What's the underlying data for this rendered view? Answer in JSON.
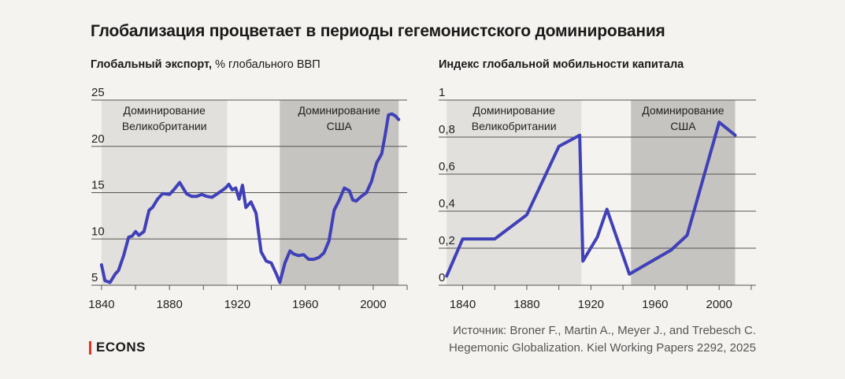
{
  "header": {
    "title": "Глобализация процветает в периоды гегемонистского доминирования"
  },
  "left_chart_header": {
    "bold": "Глобальный экспорт,",
    "normal": " % глобального ВВП"
  },
  "right_chart_header": {
    "text": "Индекс глобальной мобильности капитала"
  },
  "source": {
    "line1": "Источник: Broner F., Martin A., Meyer J., and Trebesch C.",
    "line2": "Hegemonic Globalization. Kiel Working Papers 2292, 2025"
  },
  "logo": {
    "text": "ECONS",
    "accent": "#e0342b"
  },
  "colors": {
    "line": "#4040b8",
    "period_uk": "#e2e0dc",
    "period_us": "#c6c4c0",
    "grid": "#555555"
  },
  "chart_data": [
    {
      "type": "line",
      "title": "Глобальный экспорт, % глобального ВВП",
      "xlim": [
        1834,
        2020
      ],
      "ylim": [
        5,
        25
      ],
      "xticks": [
        1840,
        1880,
        1920,
        1960,
        2000
      ],
      "yticks": [
        5,
        10,
        15,
        20,
        25
      ],
      "ytick_labels": [
        "5",
        "10",
        "15",
        "20",
        "25"
      ],
      "periods": [
        {
          "name": "Доминирование\nВеликобритании",
          "start": 1840,
          "end": 1914,
          "shade": "light"
        },
        {
          "name": "Доминирование\nСША",
          "start": 1945,
          "end": 2015,
          "shade": "dark"
        }
      ],
      "series": [
        {
          "x": [
            1840,
            1842,
            1845,
            1848,
            1850,
            1853,
            1856,
            1858,
            1860,
            1862,
            1865,
            1868,
            1870,
            1873,
            1876,
            1880,
            1883,
            1886,
            1890,
            1893,
            1896,
            1899,
            1902,
            1905,
            1910,
            1913,
            1915,
            1917,
            1919,
            1921,
            1923,
            1925,
            1928,
            1931,
            1934,
            1937,
            1940,
            1943,
            1945,
            1948,
            1951,
            1953,
            1956,
            1959,
            1962,
            1965,
            1968,
            1971,
            1974,
            1977,
            1980,
            1983,
            1986,
            1988,
            1990,
            1993,
            1996,
            1999,
            2002,
            2005,
            2007,
            2009,
            2011,
            2013,
            2015
          ],
          "y": [
            7.2,
            5.5,
            5.3,
            6.2,
            6.6,
            8.2,
            10.2,
            10.3,
            10.8,
            10.4,
            10.8,
            13.1,
            13.4,
            14.3,
            14.9,
            14.8,
            15.4,
            16.1,
            14.9,
            14.6,
            14.6,
            14.8,
            14.6,
            14.5,
            15.1,
            15.5,
            15.9,
            15.3,
            15.5,
            14.3,
            15.8,
            13.4,
            14.0,
            12.8,
            8.6,
            7.6,
            7.4,
            6.2,
            5.3,
            7.4,
            8.7,
            8.4,
            8.2,
            8.3,
            7.8,
            7.8,
            8.0,
            8.5,
            9.8,
            13.1,
            14.2,
            15.5,
            15.2,
            14.2,
            14.1,
            14.6,
            15.0,
            16.2,
            18.2,
            19.2,
            21.2,
            23.4,
            23.5,
            23.3,
            22.9
          ]
        }
      ]
    },
    {
      "type": "line",
      "title": "Индекс глобальной мобильности капитала",
      "xlim": [
        1825,
        2023
      ],
      "ylim": [
        0,
        1
      ],
      "xticks": [
        1840,
        1880,
        1920,
        1960,
        2000
      ],
      "yticks": [
        0,
        0.2,
        0.4,
        0.6,
        0.8,
        1
      ],
      "ytick_labels": [
        "0",
        "0,2",
        "0,4",
        "0,6",
        "0,8",
        "1"
      ],
      "periods": [
        {
          "name": "Доминирование\nВеликобритании",
          "start": 1830,
          "end": 1914,
          "shade": "light"
        },
        {
          "name": "Доминирование\nСША",
          "start": 1945,
          "end": 2010,
          "shade": "dark"
        }
      ],
      "series": [
        {
          "x": [
            1830,
            1840,
            1850,
            1860,
            1880,
            1900,
            1913,
            1915,
            1924,
            1930,
            1944,
            1970,
            1980,
            2000,
            2010
          ],
          "y": [
            0.05,
            0.25,
            0.25,
            0.25,
            0.38,
            0.75,
            0.81,
            0.13,
            0.26,
            0.41,
            0.06,
            0.19,
            0.27,
            0.88,
            0.81
          ]
        }
      ]
    }
  ]
}
